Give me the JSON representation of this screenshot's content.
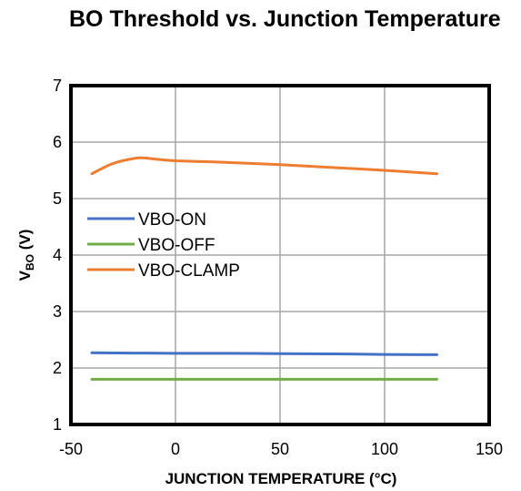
{
  "chart_data": {
    "type": "line",
    "title": "BO Threshold vs. Junction Temperature",
    "xlabel": "JUNCTION TEMPERATURE (°C)",
    "ylabel_main": "V",
    "ylabel_sub": "BO",
    "ylabel_unit": " (V)",
    "xlim": [
      -50,
      150
    ],
    "ylim": [
      1,
      7
    ],
    "x_ticks": [
      -50,
      0,
      50,
      100,
      150
    ],
    "y_ticks": [
      1,
      2,
      3,
      4,
      5,
      6,
      7
    ],
    "x_tick_labels": [
      "-50",
      "0",
      "50",
      "100",
      "150"
    ],
    "y_tick_labels": [
      "1",
      "2",
      "3",
      "4",
      "5",
      "6",
      "7"
    ],
    "grid": true,
    "legend_position": "center-left",
    "series": [
      {
        "name": "VBO-ON",
        "color": "#4472C4",
        "x": [
          -40,
          -20,
          0,
          25,
          50,
          75,
          100,
          125
        ],
        "y": [
          2.27,
          2.265,
          2.26,
          2.26,
          2.255,
          2.25,
          2.24,
          2.235
        ]
      },
      {
        "name": "VBO-OFF",
        "color": "#70AD47",
        "x": [
          -40,
          -20,
          0,
          25,
          50,
          75,
          100,
          125
        ],
        "y": [
          1.8,
          1.8,
          1.8,
          1.8,
          1.8,
          1.8,
          1.8,
          1.8
        ]
      },
      {
        "name": "VBO-CLAMP",
        "color": "#ED7D31",
        "x": [
          -40,
          -30,
          -20,
          -15,
          -10,
          0,
          25,
          50,
          75,
          100,
          125
        ],
        "y": [
          5.44,
          5.62,
          5.71,
          5.72,
          5.7,
          5.67,
          5.64,
          5.6,
          5.55,
          5.5,
          5.44
        ]
      }
    ]
  }
}
